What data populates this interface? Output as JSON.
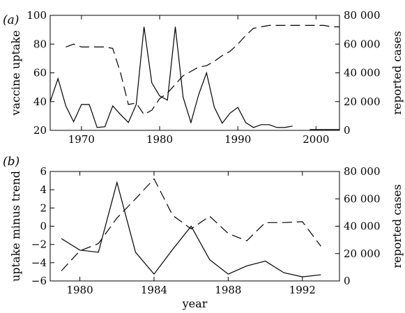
{
  "chart_data": [
    {
      "type": "line",
      "panel_label": "(a)",
      "title": "",
      "xlabel": "",
      "ylabel": "vaccine uptake",
      "y2label": "reported cases",
      "xlim": [
        1966,
        2003
      ],
      "ylim": [
        20,
        100
      ],
      "y2lim": [
        0,
        80000
      ],
      "x_ticks": [
        "1970",
        "1980",
        "1990",
        "2000"
      ],
      "x_tick_values": [
        1970,
        1980,
        1990,
        2000
      ],
      "y_ticks": [
        "20",
        "40",
        "60",
        "80",
        "100"
      ],
      "y_tick_values": [
        20,
        40,
        60,
        80,
        100
      ],
      "y2_ticks": [
        "0",
        "20 000",
        "40 000",
        "60 000",
        "80 000"
      ],
      "y2_tick_values": [
        0,
        20000,
        40000,
        60000,
        80000
      ],
      "series": [
        {
          "axis": "right",
          "style": "solid",
          "x": [
            1966,
            1967,
            1968,
            1969,
            1970,
            1971,
            1972,
            1973,
            1974,
            1975,
            1976,
            1977,
            1978,
            1979,
            1980,
            1981,
            1982,
            1983,
            1984,
            1985,
            1986,
            1987,
            1988,
            1989,
            1990,
            1991,
            1992,
            1993,
            1994,
            1995,
            1996,
            1997
          ],
          "values": [
            20000,
            36000,
            17000,
            6000,
            18000,
            18000,
            2000,
            2500,
            17000,
            11000,
            5500,
            18000,
            72000,
            33000,
            24000,
            21000,
            72000,
            23000,
            5500,
            25000,
            40000,
            16000,
            5000,
            12000,
            16000,
            5500,
            2000,
            4000,
            4000,
            2000,
            2000,
            3000
          ]
        },
        {
          "axis": "left",
          "style": "dashed",
          "x": [
            1968,
            1969,
            1970,
            1971,
            1972,
            1973,
            1974,
            1975,
            1976,
            1977,
            1978,
            1979,
            1980,
            1981,
            1982,
            1983,
            1984,
            1985,
            1986,
            1987,
            1988,
            1989,
            1990,
            1991,
            1992,
            1993,
            1994,
            1995,
            1996,
            1997,
            1998,
            1999,
            2000,
            2001,
            2002,
            2003
          ],
          "values": [
            78,
            80,
            78,
            78,
            78,
            78,
            77,
            60,
            38,
            39,
            31,
            34,
            42,
            46,
            52,
            58,
            61,
            64,
            65,
            68,
            72,
            75,
            80,
            86,
            91,
            92,
            93,
            93,
            93,
            93,
            93,
            93,
            93,
            93,
            92,
            92
          ]
        },
        {
          "axis": "right",
          "style": "solid",
          "x": [
            1999.2,
            2003
          ],
          "values": [
            600,
            600
          ]
        }
      ]
    },
    {
      "type": "line",
      "panel_label": "(b)",
      "title": "",
      "xlabel": "year",
      "ylabel": "uptake minus trend",
      "y2label": "reported cases",
      "xlim": [
        1978.4,
        1994
      ],
      "ylim": [
        -6,
        6
      ],
      "y2lim": [
        0,
        80000
      ],
      "x_ticks": [
        "1980",
        "1984",
        "1988",
        "1992"
      ],
      "x_tick_values": [
        1980,
        1984,
        1988,
        1992
      ],
      "y_ticks": [
        "−6",
        "−4",
        "−2",
        "0",
        "2",
        "4",
        "6"
      ],
      "y_tick_values": [
        -6,
        -4,
        -2,
        0,
        2,
        4,
        6
      ],
      "y2_ticks": [
        "0",
        "20 000",
        "40 000",
        "60 000",
        "80 000"
      ],
      "y2_tick_values": [
        0,
        20000,
        40000,
        60000,
        80000
      ],
      "series": [
        {
          "axis": "right",
          "style": "solid",
          "x": [
            1979,
            1980,
            1981,
            1982,
            1983,
            1984,
            1985,
            1986,
            1987,
            1988,
            1989,
            1990,
            1991,
            1992,
            1993
          ],
          "values": [
            31000,
            22500,
            21000,
            72000,
            21000,
            5000,
            23000,
            40000,
            15500,
            5000,
            11000,
            14500,
            6000,
            3000,
            4500
          ]
        },
        {
          "axis": "left",
          "style": "dashed",
          "x": [
            1979,
            1980,
            1981,
            1982,
            1983,
            1984,
            1985,
            1986,
            1987,
            1988,
            1989,
            1990,
            1991,
            1992,
            1993
          ],
          "values": [
            -4.9,
            -2.7,
            -1.9,
            0.9,
            3.0,
            5.2,
            1.2,
            -0.3,
            1.1,
            -0.8,
            -1.6,
            0.4,
            0.4,
            0.5,
            -2.2
          ]
        }
      ]
    }
  ]
}
